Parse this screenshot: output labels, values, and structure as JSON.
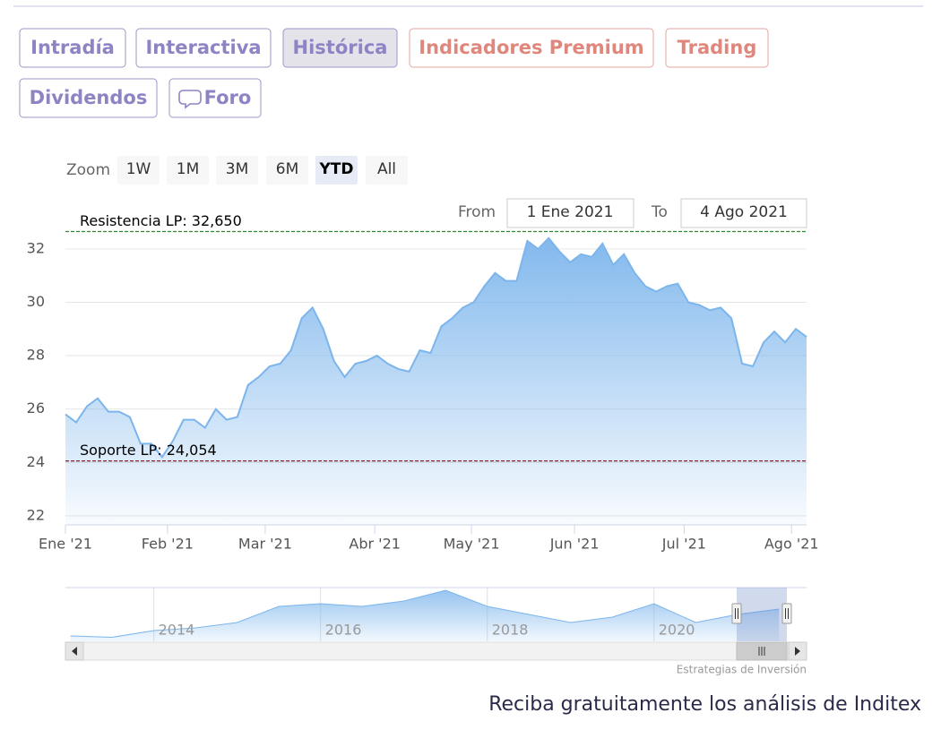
{
  "tabs": [
    "Intradía",
    "Interactiva",
    "Histórica",
    "Indicadores Premium",
    "Trading",
    "Dividendos",
    "Foro"
  ],
  "zoom": {
    "label": "Zoom",
    "buttons": [
      "1W",
      "1M",
      "3M",
      "6M",
      "YTD",
      "All"
    ]
  },
  "range": {
    "from_label": "From",
    "from": "1 Ene 2021",
    "to_label": "To",
    "to": "4 Ago 2021"
  },
  "chart_data": [
    {
      "type": "area",
      "color": "#7cb5ec",
      "values": [
        25.8,
        25.5,
        26.1,
        26.4,
        25.9,
        25.9,
        25.7,
        24.7,
        24.7,
        24.2,
        24.8,
        25.6,
        25.6,
        25.3,
        26.0,
        25.6,
        25.7,
        26.9,
        27.2,
        27.6,
        27.7,
        28.2,
        29.4,
        29.8,
        29.0,
        27.8,
        27.2,
        27.7,
        27.8,
        28.0,
        27.7,
        27.5,
        27.4,
        28.2,
        28.1,
        29.1,
        29.4,
        29.8,
        30.0,
        30.6,
        31.1,
        30.8,
        30.8,
        32.3,
        32.0,
        32.4,
        31.9,
        31.5,
        31.8,
        31.7,
        32.2,
        31.4,
        31.8,
        31.1,
        30.6,
        30.4,
        30.6,
        30.7,
        30.0,
        29.9,
        29.7,
        29.8,
        29.4,
        27.7,
        27.6,
        28.5,
        28.9,
        28.5,
        29.0,
        28.7
      ],
      "xlim": [
        0,
        69
      ],
      "xticks": [
        {
          "value": 0,
          "label": "Ene '21"
        },
        {
          "value": 9.5,
          "label": "Feb '21"
        },
        {
          "value": 18.6,
          "label": "Mar '21"
        },
        {
          "value": 28.8,
          "label": "Abr '21"
        },
        {
          "value": 37.8,
          "label": "May '21"
        },
        {
          "value": 47.4,
          "label": "Jun '21"
        },
        {
          "value": 57.6,
          "label": "Jul '21"
        },
        {
          "value": 67.6,
          "label": "Ago '21"
        }
      ],
      "ylim": [
        21.66,
        33.74
      ],
      "yticks": [
        22,
        24,
        26,
        28,
        30,
        32
      ],
      "grid": true,
      "annotations": [
        {
          "label": "Resistencia LP: 32,650",
          "value": 32.65,
          "color": "#2e8b2e"
        },
        {
          "label": "Soporte LP: 24,054",
          "value": 24.054,
          "color": "#8b1a2b"
        }
      ]
    },
    {
      "type": "area",
      "color": "#7cb5ec",
      "x": [
        2013.0,
        2013.5,
        2014.0,
        2014.5,
        2015.0,
        2015.5,
        2016.0,
        2016.5,
        2017.0,
        2017.5,
        2018.0,
        2018.5,
        2019.0,
        2019.5,
        2020.0,
        2020.5,
        2021.0,
        2021.5
      ],
      "values": [
        19,
        18.5,
        21,
        22,
        24,
        30,
        31,
        30,
        32,
        36,
        30,
        27,
        24,
        26,
        31,
        24,
        27,
        29
      ],
      "xlim": [
        2012.94,
        2021.83
      ],
      "ylim": [
        17,
        37
      ],
      "xticks": [
        2014,
        2016,
        2018,
        2020
      ]
    }
  ],
  "credits": "Estrategias de Inversión",
  "footer": "Reciba gratuitamente los análisis de Inditex"
}
